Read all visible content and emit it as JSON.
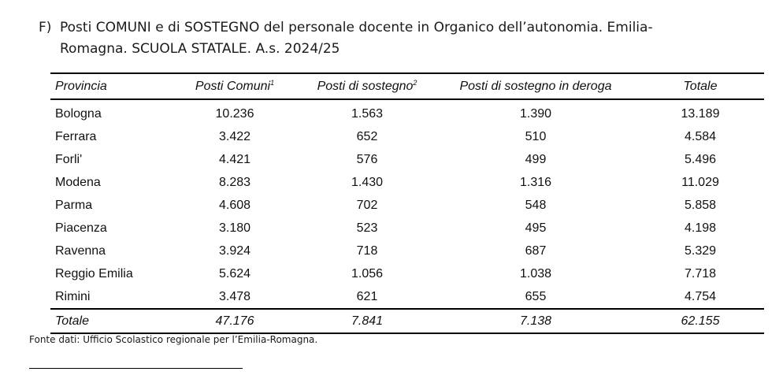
{
  "title": {
    "letter": "F)",
    "line1": "Posti COMUNI e di SOSTEGNO del personale docente in Organico dell’autonomia. Emilia-",
    "line2": "Romagna. SCUOLA STATALE. A.s. 2024/25"
  },
  "table": {
    "headers": {
      "provincia": "Provincia",
      "posti_comuni": "Posti Comuni",
      "posti_comuni_note": "1",
      "posti_sostegno": "Posti di sostegno",
      "posti_sostegno_note": "2",
      "posti_deroga": "Posti di sostegno in deroga",
      "totale": "Totale"
    },
    "rows": [
      {
        "provincia": "Bologna",
        "comuni": "10.236",
        "sostegno": "1.563",
        "deroga": "1.390",
        "totale": "13.189"
      },
      {
        "provincia": "Ferrara",
        "comuni": "3.422",
        "sostegno": "652",
        "deroga": "510",
        "totale": "4.584"
      },
      {
        "provincia": "Forli'",
        "comuni": "4.421",
        "sostegno": "576",
        "deroga": "499",
        "totale": "5.496"
      },
      {
        "provincia": "Modena",
        "comuni": "8.283",
        "sostegno": "1.430",
        "deroga": "1.316",
        "totale": "11.029"
      },
      {
        "provincia": "Parma",
        "comuni": "4.608",
        "sostegno": "702",
        "deroga": "548",
        "totale": "5.858"
      },
      {
        "provincia": "Piacenza",
        "comuni": "3.180",
        "sostegno": "523",
        "deroga": "495",
        "totale": "4.198"
      },
      {
        "provincia": "Ravenna",
        "comuni": "3.924",
        "sostegno": "718",
        "deroga": "687",
        "totale": "5.329"
      },
      {
        "provincia": "Reggio Emilia",
        "comuni": "5.624",
        "sostegno": "1.056",
        "deroga": "1.038",
        "totale": "7.718"
      },
      {
        "provincia": "Rimini",
        "comuni": "3.478",
        "sostegno": "621",
        "deroga": "655",
        "totale": "4.754"
      }
    ],
    "total_row": {
      "provincia": "Totale",
      "comuni": "47.176",
      "sostegno": "7.841",
      "deroga": "7.138",
      "totale": "62.155"
    }
  },
  "source": "Fonte dati: Ufficio Scolastico regionale per l’Emilia-Romagna."
}
